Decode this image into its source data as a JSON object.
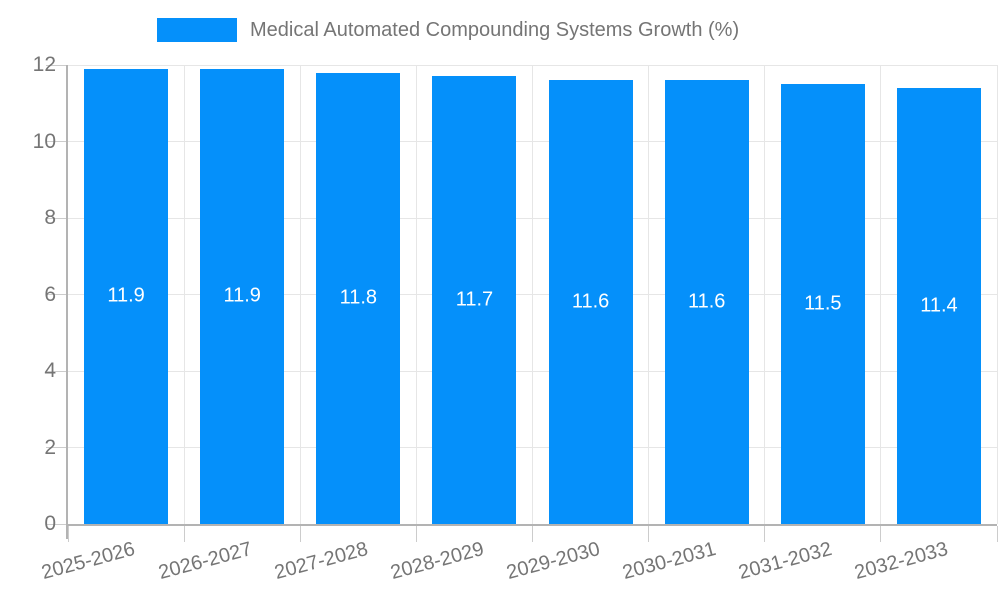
{
  "legend": {
    "label": "Medical Automated Compounding Systems Growth (%)",
    "swatch_color": "#0590fa"
  },
  "chart_data": {
    "type": "bar",
    "title": "Medical Automated Compounding Systems Growth (%)",
    "categories": [
      "2025-2026",
      "2026-2027",
      "2027-2028",
      "2028-2029",
      "2029-2030",
      "2030-2031",
      "2031-2032",
      "2032-2033"
    ],
    "values": [
      11.9,
      11.9,
      11.8,
      11.7,
      11.6,
      11.6,
      11.5,
      11.4
    ],
    "value_labels": [
      "11.9",
      "11.9",
      "11.8",
      "11.7",
      "11.6",
      "11.6",
      "11.5",
      "11.4"
    ],
    "xlabel": "",
    "ylabel": "",
    "ylim": [
      0,
      12
    ],
    "yticks": [
      0,
      2,
      4,
      6,
      8,
      10,
      12
    ],
    "ytick_labels": [
      "0",
      "2",
      "4",
      "6",
      "8",
      "10",
      "12"
    ],
    "bar_color": "#0590fa",
    "value_label_color": "#ffffff",
    "axis_text_color": "#757575",
    "gridline_color": "#e6e6e6",
    "axis_line_color": "#b3b3b3",
    "grid": true,
    "legend_position": "top",
    "x_label_rotation_deg": -15
  }
}
